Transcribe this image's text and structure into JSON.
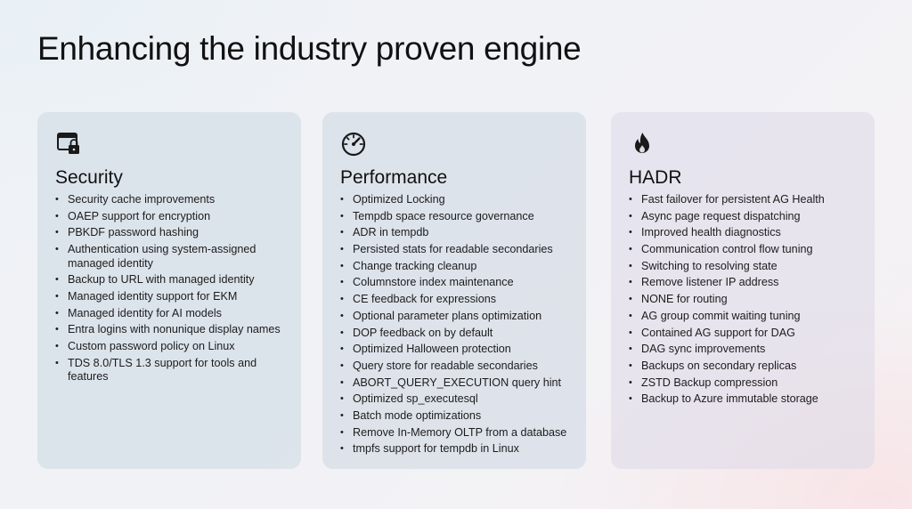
{
  "title": "Enhancing the industry proven engine",
  "cards": [
    {
      "icon": "window-lock-icon",
      "heading": "Security",
      "items": [
        "Security cache improvements",
        "OAEP support for encryption",
        "PBKDF password hashing",
        "Authentication using system-assigned managed identity",
        "Backup to URL with managed identity",
        "Managed identity support for EKM",
        "Managed identity for AI models",
        "Entra logins with nonunique display names",
        "Custom password policy on Linux",
        "TDS 8.0/TLS 1.3 support for tools and features"
      ]
    },
    {
      "icon": "gauge-icon",
      "heading": "Performance",
      "items": [
        "Optimized Locking",
        "Tempdb space resource governance",
        "ADR in tempdb",
        "Persisted stats for readable secondaries",
        "Change tracking cleanup",
        "Columnstore index maintenance",
        "CE feedback for expressions",
        "Optional parameter plans optimization",
        "DOP feedback on by default",
        "Optimized Halloween protection",
        "Query store for readable secondaries",
        "ABORT_QUERY_EXECUTION query hint",
        "Optimized sp_executesql",
        "Batch mode optimizations",
        "Remove In-Memory OLTP from a database",
        "tmpfs support for tempdb in Linux"
      ]
    },
    {
      "icon": "flame-icon",
      "heading": "HADR",
      "items": [
        "Fast failover for persistent AG Health",
        "Async page request dispatching",
        "Improved health diagnostics",
        "Communication control flow tuning",
        "Switching to resolving state",
        "Remove listener IP address",
        "NONE for routing",
        "AG group commit waiting tuning",
        "Contained AG support for DAG",
        "DAG sync improvements",
        "Backups on secondary replicas",
        "ZSTD Backup compression",
        "Backup to Azure immutable storage"
      ]
    }
  ]
}
